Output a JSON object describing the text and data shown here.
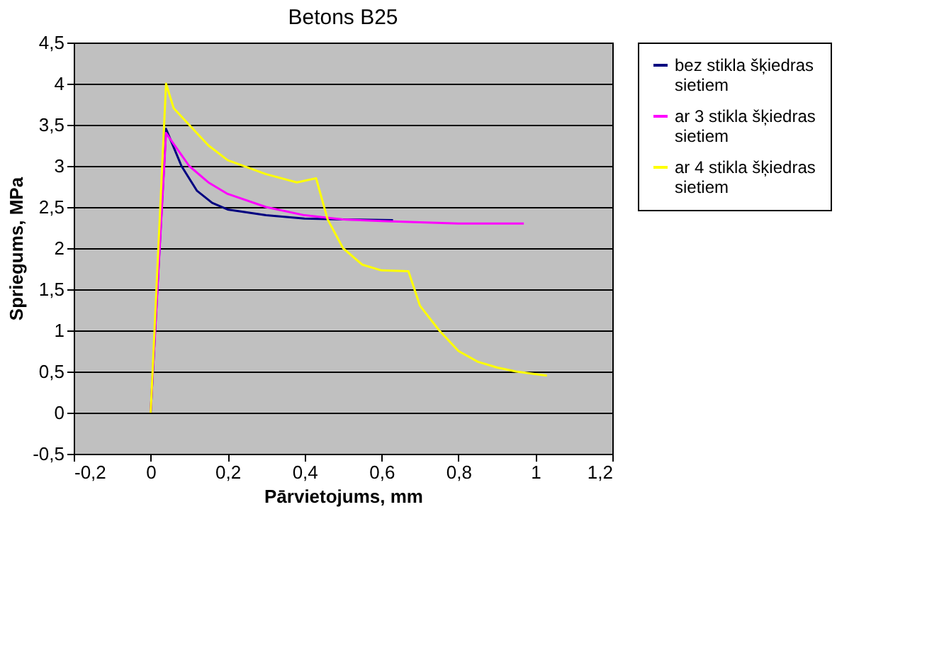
{
  "chart_data": {
    "type": "line",
    "title": "Betons B25",
    "xlabel": "Pārvietojums, mm",
    "ylabel": "Spriegums, MPa",
    "xlim": [
      -0.2,
      1.2
    ],
    "ylim": [
      -0.5,
      4.5
    ],
    "xticks": [
      {
        "value": -0.2,
        "label": "-0,2"
      },
      0,
      {
        "value": 0.2,
        "label": "0,2"
      },
      {
        "value": 0.4,
        "label": "0,4"
      },
      {
        "value": 0.6,
        "label": "0,6"
      },
      {
        "value": 0.8,
        "label": "0,8"
      },
      1,
      {
        "value": 1.2,
        "label": "1,2"
      }
    ],
    "yticks": [
      {
        "value": -0.5,
        "label": "-0,5"
      },
      0,
      {
        "value": 0.5,
        "label": "0,5"
      },
      1,
      {
        "value": 1.5,
        "label": "1,5"
      },
      2,
      {
        "value": 2.5,
        "label": "2,5"
      },
      3,
      {
        "value": 3.5,
        "label": "3,5"
      },
      4,
      {
        "value": 4.5,
        "label": "4,5"
      }
    ],
    "grid": "y",
    "legend": "right",
    "marker": "none",
    "line_style": "solid",
    "series": [
      {
        "name": "bez stikla šķiedras sietiem",
        "color": "#000080",
        "x": [
          0,
          0.04,
          0.08,
          0.12,
          0.16,
          0.2,
          0.3,
          0.4,
          0.5,
          0.63
        ],
        "values": [
          0,
          3.45,
          3.0,
          2.7,
          2.55,
          2.47,
          2.4,
          2.36,
          2.35,
          2.34
        ]
      },
      {
        "name": "ar 3 stikla šķiedras sietiem",
        "color": "#ff00ff",
        "x": [
          0,
          0.04,
          0.1,
          0.15,
          0.2,
          0.3,
          0.4,
          0.5,
          0.6,
          0.8,
          0.97
        ],
        "values": [
          0,
          3.4,
          3.0,
          2.8,
          2.66,
          2.5,
          2.4,
          2.35,
          2.33,
          2.3,
          2.3
        ]
      },
      {
        "name": "ar 4 stikla šķiedras sietiem",
        "color": "#ffff00",
        "x": [
          0,
          0.04,
          0.06,
          0.1,
          0.15,
          0.2,
          0.3,
          0.38,
          0.43,
          0.46,
          0.5,
          0.55,
          0.6,
          0.67,
          0.7,
          0.75,
          0.8,
          0.85,
          0.9,
          0.95,
          1.03
        ],
        "values": [
          0,
          4.0,
          3.7,
          3.5,
          3.25,
          3.07,
          2.9,
          2.8,
          2.85,
          2.35,
          2.0,
          1.8,
          1.73,
          1.72,
          1.3,
          1.0,
          0.75,
          0.62,
          0.55,
          0.5,
          0.45
        ]
      }
    ]
  }
}
